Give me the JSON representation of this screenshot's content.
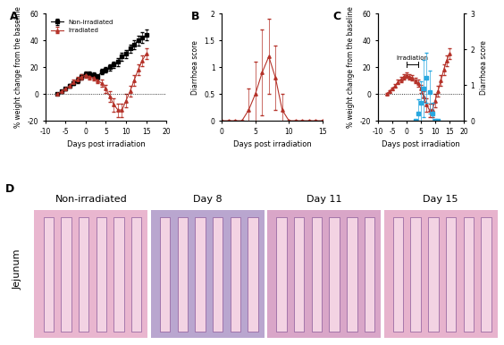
{
  "chart_data": [
    {
      "type": "line",
      "panel_label": "A",
      "x_label": "Days post irradiation",
      "y_label": "% weight change from the baseline",
      "xlim": [
        -10,
        20
      ],
      "xticks": [
        -10,
        -5,
        0,
        5,
        10,
        15,
        20
      ],
      "ylim": [
        -20,
        60
      ],
      "yticks": [
        -20,
        0,
        20,
        40,
        60
      ],
      "legend": "upper left",
      "x": [
        -7,
        -6,
        -5,
        -4,
        -3,
        -2,
        -1,
        0,
        1,
        2,
        3,
        4,
        5,
        6,
        7,
        8,
        9,
        10,
        11,
        12,
        13,
        14,
        15
      ],
      "series": [
        {
          "name": "Non-irradiated",
          "color": "#000000",
          "marker": "square",
          "line_style": "solid",
          "values": [
            0,
            2,
            4,
            6,
            8,
            10,
            13,
            15,
            15,
            14,
            13,
            17,
            18,
            20,
            22,
            24,
            28,
            30,
            34,
            37,
            40,
            42,
            44
          ],
          "error": [
            0.5,
            1,
            1,
            1.5,
            1.5,
            2,
            2,
            2,
            2,
            2,
            2,
            2,
            2,
            2.5,
            2.5,
            3,
            3,
            3,
            3,
            3.5,
            3.5,
            4,
            4
          ]
        },
        {
          "name": "Irradiated",
          "color": "#b5332a",
          "marker": "triangle",
          "line_style": "solid",
          "values": [
            0,
            2,
            4,
            6,
            9,
            11,
            13,
            14,
            13,
            12,
            10,
            8,
            4,
            -2,
            -8,
            -12,
            -12,
            -5,
            2,
            10,
            18,
            25,
            30
          ],
          "error": [
            0.5,
            1,
            1,
            1.5,
            1.5,
            2,
            2,
            2,
            2,
            2,
            2,
            2.5,
            3,
            4,
            5,
            5,
            5,
            5,
            4,
            4,
            4,
            4,
            4
          ]
        }
      ]
    },
    {
      "type": "line",
      "panel_label": "B",
      "x_label": "Days post irradiation",
      "y_label": "Diarrhoea score",
      "xlim": [
        0,
        15
      ],
      "xticks": [
        0,
        5,
        10,
        15
      ],
      "ylim": [
        0,
        2
      ],
      "yticks": [
        0,
        0.5,
        1,
        1.5,
        2
      ],
      "x": [
        0,
        1,
        2,
        3,
        4,
        5,
        6,
        7,
        8,
        9,
        10,
        11,
        12,
        13,
        14,
        15
      ],
      "series": [
        {
          "name": "Irradiated",
          "color": "#b5332a",
          "marker": "triangle",
          "line_style": "solid",
          "values": [
            0,
            0,
            0,
            0,
            0.2,
            0.5,
            0.9,
            1.2,
            0.8,
            0.2,
            0,
            0,
            0,
            0,
            0,
            0
          ],
          "error": [
            0,
            0,
            0,
            0,
            0.4,
            0.6,
            0.8,
            0.7,
            0.6,
            0.3,
            0,
            0,
            0,
            0,
            0,
            0
          ]
        }
      ]
    },
    {
      "type": "line",
      "panel_label": "C",
      "x_label": "Days post irradiation",
      "y_label": "% weight change from the baseline",
      "y2_label": "Diarrhoea score",
      "xlim": [
        -10,
        20
      ],
      "xticks": [
        -10,
        -5,
        0,
        5,
        10,
        15,
        20
      ],
      "ylim": [
        -20,
        60
      ],
      "yticks": [
        -20,
        0,
        20,
        40,
        60
      ],
      "y2lim": [
        0,
        3
      ],
      "y2ticks": [
        0,
        1,
        2,
        3
      ],
      "annotations": [
        {
          "text": "Irradiation",
          "x": [
            0,
            4
          ],
          "y": 22
        }
      ],
      "series": [
        {
          "name": "% weight change from the baseline",
          "color": "#b5332a",
          "marker": "triangle",
          "line_style": "solid",
          "x": [
            -7,
            -6,
            -5,
            -4,
            -3,
            -2,
            -1,
            0,
            1,
            2,
            3,
            4,
            5,
            6,
            7,
            8,
            9,
            10,
            11,
            12,
            13,
            14,
            15
          ],
          "values": [
            0,
            2,
            4,
            6,
            9,
            11,
            13,
            14,
            13,
            12,
            10,
            8,
            4,
            -2,
            -8,
            -12,
            -12,
            -5,
            2,
            10,
            18,
            25,
            30
          ],
          "error": [
            0.5,
            1,
            1,
            1.5,
            1.5,
            2,
            2,
            2,
            2,
            2,
            2,
            2.5,
            3,
            4,
            5,
            5,
            5,
            5,
            4,
            4,
            4,
            4,
            4
          ]
        },
        {
          "name": "Diarrhoea score",
          "color": "#29a8e0",
          "marker": "square",
          "type": "scatter",
          "axis": "y2",
          "x": [
            3,
            4,
            5,
            6,
            7,
            8,
            9,
            10,
            11
          ],
          "values": [
            0,
            0.2,
            0.5,
            0.9,
            1.2,
            0.8,
            0.2,
            0,
            0
          ],
          "error": [
            0,
            0.4,
            0.6,
            0.8,
            0.7,
            0.6,
            0.3,
            0,
            0
          ]
        }
      ]
    }
  ],
  "histology": {
    "panel_label": "D",
    "row_label": "Jejunum",
    "images": [
      "Non-irradiated",
      "Day 8",
      "Day 11",
      "Day 15"
    ]
  }
}
